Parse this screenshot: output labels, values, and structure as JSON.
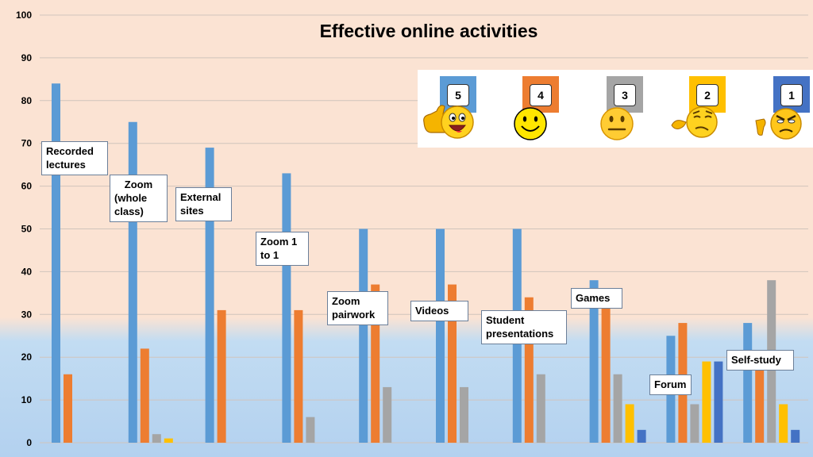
{
  "chart_data": {
    "type": "bar",
    "title": "Effective online activities",
    "ylim": [
      0,
      100
    ],
    "yticks": [
      0,
      10,
      20,
      30,
      40,
      50,
      60,
      70,
      80,
      90,
      100
    ],
    "grid": true,
    "legend_position": "top-right",
    "categories": [
      "Recorded lectures",
      "Zoom (whole class)",
      "External sites",
      "Zoom 1 to 1",
      "Zoom pairwork",
      "Videos",
      "Student presentations",
      "Games",
      "Forum",
      "Self-study"
    ],
    "category_labels": [
      [
        "Recorded",
        "lectures"
      ],
      [
        "Zoom",
        "(whole",
        "class)"
      ],
      [
        "External",
        "sites"
      ],
      [
        "Zoom 1",
        "to 1"
      ],
      [
        "Zoom",
        "pairwork"
      ],
      [
        "Videos"
      ],
      [
        "Student",
        "presentations"
      ],
      [
        "Games"
      ],
      [
        "Forum"
      ],
      [
        "Self-study"
      ]
    ],
    "series": [
      {
        "name": "5",
        "color": "#5b9bd5",
        "values": [
          84,
          75,
          69,
          63,
          50,
          50,
          50,
          38,
          25,
          28
        ]
      },
      {
        "name": "4",
        "color": "#ed7d31",
        "values": [
          16,
          22,
          31,
          31,
          37,
          37,
          34,
          33,
          28,
          18
        ]
      },
      {
        "name": "3",
        "color": "#a5a5a5",
        "values": [
          0,
          2,
          0,
          6,
          13,
          13,
          16,
          16,
          9,
          38
        ]
      },
      {
        "name": "2",
        "color": "#ffc000",
        "values": [
          0,
          1,
          0,
          0,
          0,
          0,
          0,
          9,
          19,
          9
        ]
      },
      {
        "name": "1",
        "color": "#4472c4",
        "values": [
          0,
          0,
          0,
          0,
          0,
          0,
          0,
          3,
          19,
          3
        ]
      }
    ],
    "legend_icons": [
      "thumbs-up-smiley-icon",
      "smiley-icon",
      "neutral-face-icon",
      "skeptical-face-icon",
      "thumbs-down-angry-face-icon"
    ]
  }
}
